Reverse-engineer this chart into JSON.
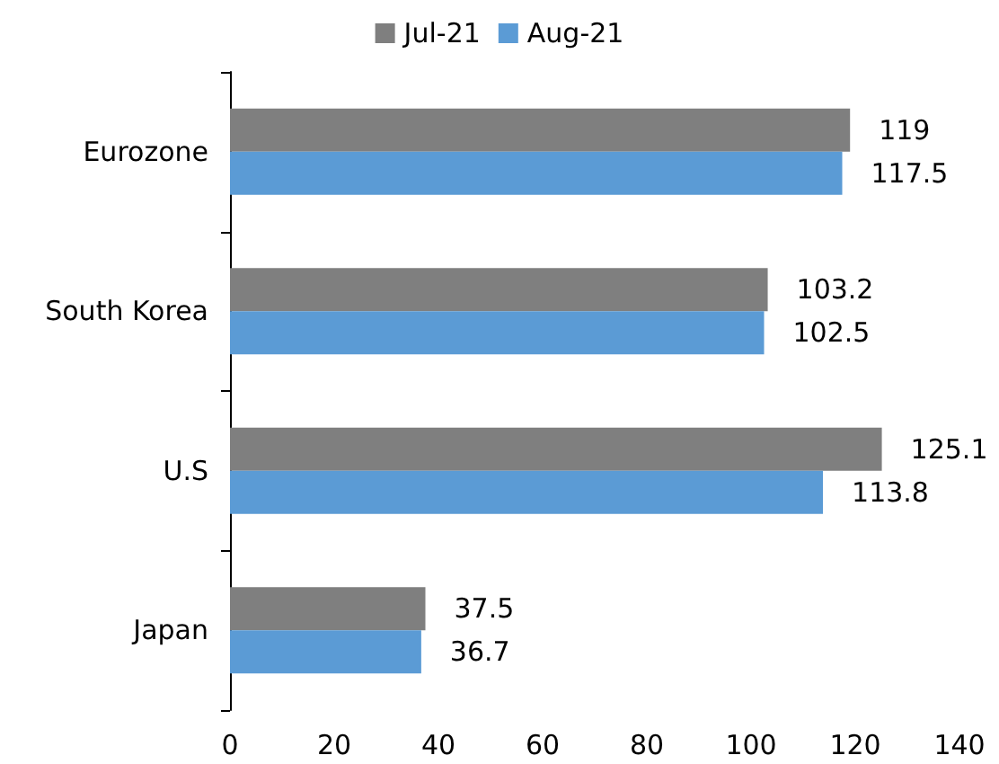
{
  "chart_data": {
    "type": "bar",
    "orientation": "horizontal",
    "categories": [
      "Eurozone",
      "South Korea",
      "U.S",
      "Japan"
    ],
    "series": [
      {
        "name": "Jul-21",
        "color": "#7f7f7f",
        "values": [
          119,
          103.2,
          125.1,
          37.5
        ]
      },
      {
        "name": "Aug-21",
        "color": "#5b9bd5",
        "values": [
          117.5,
          102.5,
          113.8,
          36.7
        ]
      }
    ],
    "xlim": [
      0,
      140
    ],
    "xticks": [
      0,
      20,
      40,
      60,
      80,
      100,
      120,
      140
    ],
    "grid": false,
    "legend": "top",
    "data_labels": true
  }
}
